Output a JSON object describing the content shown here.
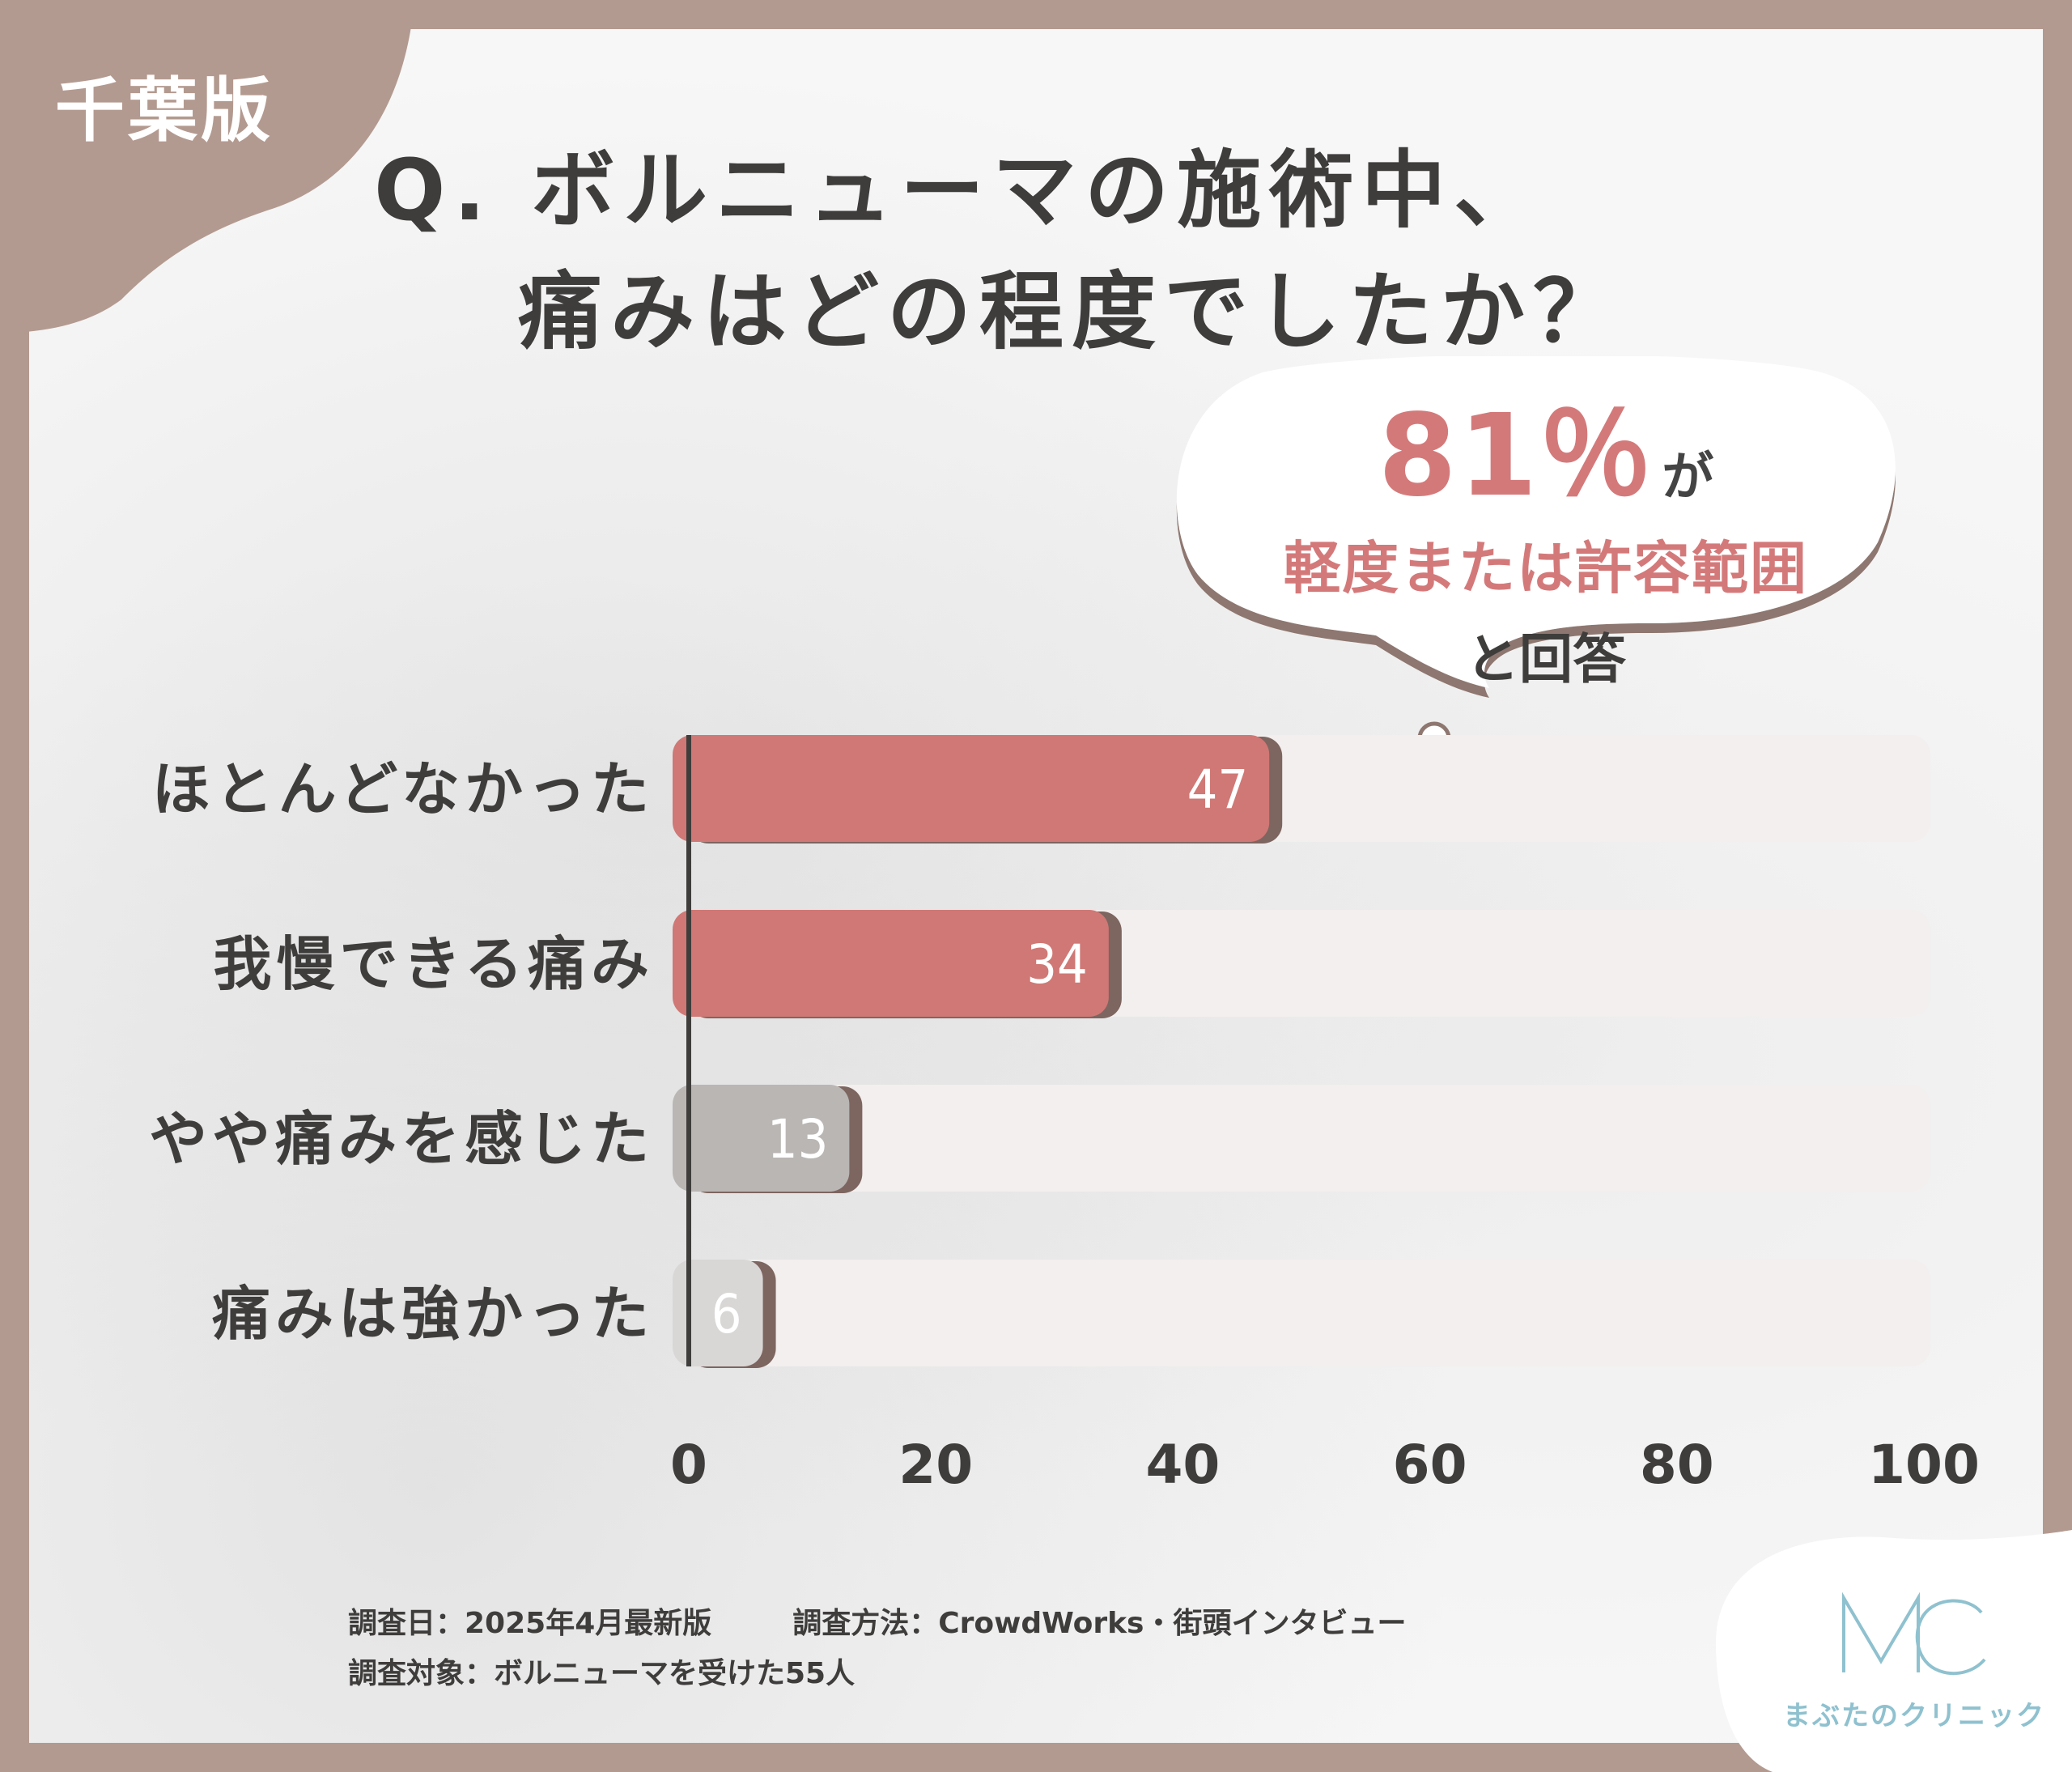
{
  "region_label": "千葉版",
  "title": {
    "line1": "Q. ボルニューマの施術中、",
    "line2": "痛みはどの程度でしたか？"
  },
  "callout": {
    "percent": "81％",
    "percent_suffix": "が",
    "line2": "軽度または許容範囲",
    "line3": "と回答"
  },
  "colors": {
    "frame": "#b39a90",
    "accent": "#d4797a",
    "bar_red": "#d07875",
    "bar_gray": "#b9b6b4",
    "bar_lightgray": "#d9d7d6",
    "track": "#f2efee",
    "logo": "#8fc1cf"
  },
  "chart_data": {
    "type": "bar",
    "orientation": "horizontal",
    "categories": [
      "ほとんどなかった",
      "我慢できる痛み",
      "やや痛みを感じた",
      "痛みは強かった"
    ],
    "values": [
      47,
      34,
      13,
      6
    ],
    "value_labels": [
      "47",
      "34",
      "13",
      "6"
    ],
    "bar_colors": [
      "#d07875",
      "#d07875",
      "#b9b6b4",
      "#d9d7d6"
    ],
    "x_ticks": [
      "0",
      "20",
      "40",
      "60",
      "80",
      "100"
    ],
    "xlim": [
      0,
      100
    ],
    "title": "",
    "xlabel": "",
    "ylabel": "",
    "grid": false
  },
  "footer": {
    "survey_date": "調査日：2025年4月最新版",
    "survey_method": "調査方法：CrowdWorks・街頭インタビュー",
    "survey_target": "調査対象：ボルニューマを受けた55人"
  },
  "logo": {
    "mark": "MC",
    "name": "まぶたのクリニック"
  }
}
